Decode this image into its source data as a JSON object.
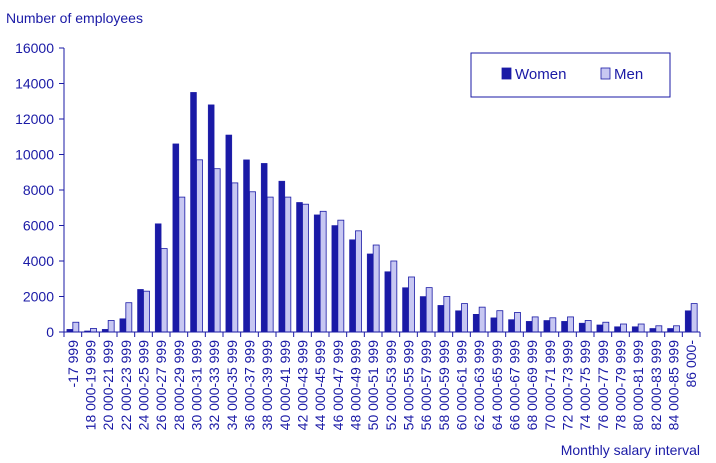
{
  "chart_data": {
    "type": "bar",
    "ylabel": "Number of employees",
    "xlabel": "Monthly salary interval",
    "ylim": [
      0,
      16000
    ],
    "yticks": [
      0,
      2000,
      4000,
      6000,
      8000,
      10000,
      12000,
      14000,
      16000
    ],
    "grid": false,
    "legend_position": "top-right",
    "categories": [
      "-17 999",
      "18 000-19 999",
      "20 000-21 999",
      "22 000-23 999",
      "24 000-25 999",
      "26 000-27 999",
      "28 000-29 999",
      "30 000-31 999",
      "32 000-33 999",
      "34 000-35 999",
      "36 000-37 999",
      "38 000-39 999",
      "40 000-41 999",
      "42 000-43 999",
      "44 000-45 999",
      "46 000-47 999",
      "48 000-49 999",
      "50 000-51 999",
      "52 000-53 999",
      "54 000-55 999",
      "56 000-57 999",
      "58 000-59 999",
      "60 000-61 999",
      "62 000-63 999",
      "64 000-65 999",
      "66 000-67 999",
      "68 000-69 999",
      "70 000-71 999",
      "72 000-73 999",
      "74 000-75 999",
      "76 000-77 999",
      "78 000-79 999",
      "80 000-81 999",
      "82 000-83 999",
      "84 000-85 999",
      "86 000-"
    ],
    "series": [
      {
        "name": "Women",
        "color": "#1a1aa6",
        "values": [
          150,
          60,
          150,
          750,
          2400,
          6100,
          10600,
          13500,
          12800,
          11100,
          9700,
          9500,
          8500,
          7300,
          6600,
          6000,
          5200,
          4400,
          3400,
          2500,
          2000,
          1500,
          1200,
          1000,
          800,
          700,
          600,
          650,
          600,
          500,
          400,
          300,
          300,
          200,
          200,
          1200
        ]
      },
      {
        "name": "Men",
        "color": "#c7c7f2",
        "values": [
          550,
          200,
          650,
          1650,
          2300,
          4700,
          7600,
          9700,
          9200,
          8400,
          7900,
          7600,
          7600,
          7200,
          6800,
          6300,
          5700,
          4900,
          4000,
          3100,
          2500,
          2000,
          1600,
          1400,
          1200,
          1100,
          850,
          800,
          850,
          650,
          550,
          450,
          450,
          350,
          350,
          1600
        ]
      }
    ]
  }
}
